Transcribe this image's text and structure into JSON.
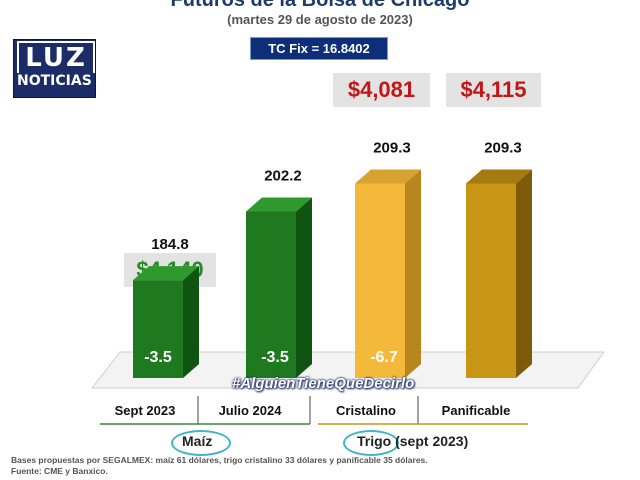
{
  "header": {
    "title": "Futuros de la Bolsa de Chicago",
    "subtitle": "(martes 29 de agosto de 2023)",
    "tc_fix": "TC Fix = 16.8402"
  },
  "logo": {
    "top": "LUZ",
    "bottom": "NOTICIAS"
  },
  "price_boxes": [
    {
      "label": "$4,140",
      "color": "#2a8a2a"
    },
    {
      "label": "$4,081",
      "color": "#c41616"
    },
    {
      "label": "$4,115",
      "color": "#c41616"
    }
  ],
  "chart_data": {
    "type": "bar",
    "categories": [
      "Sept 2023",
      "Julio 2024",
      "Cristalino",
      "Panificable"
    ],
    "values": [
      184.8,
      202.2,
      209.3,
      209.3
    ],
    "value_labels": [
      "184.8",
      "202.2",
      "209.3",
      "209.3"
    ],
    "changes": [
      -3.5,
      -3.5,
      -6.7,
      null
    ],
    "change_labels": [
      "-3.5",
      "-3.5",
      "-6.7",
      ""
    ],
    "colors": [
      "#1f7a1f",
      "#1f7a1f",
      "#f4b93b",
      "#c89614"
    ],
    "side_colors": [
      "#0f5410",
      "#0f5410",
      "#b8861e",
      "#7e5b08"
    ],
    "top_colors": [
      "#2e9a2e",
      "#2e9a2e",
      "#d7a230",
      "#a57a10"
    ],
    "ylim": [
      160,
      215
    ],
    "groups": [
      {
        "label": "Maíz",
        "categories": [
          "Sept 2023",
          "Julio 2024"
        ]
      },
      {
        "label": "Trigo (sept 2023)",
        "categories": [
          "Cristalino",
          "Panificable"
        ]
      }
    ]
  },
  "hashtag": "#AlguienTieneQueDecirlo",
  "footnotes": [
    "Bases propuestas por SEGALMEX: maíz 61 dólares, trigo cristalino 33 dólares y panificable 35 dólares.",
    "Fuente: CME y Banxico."
  ]
}
